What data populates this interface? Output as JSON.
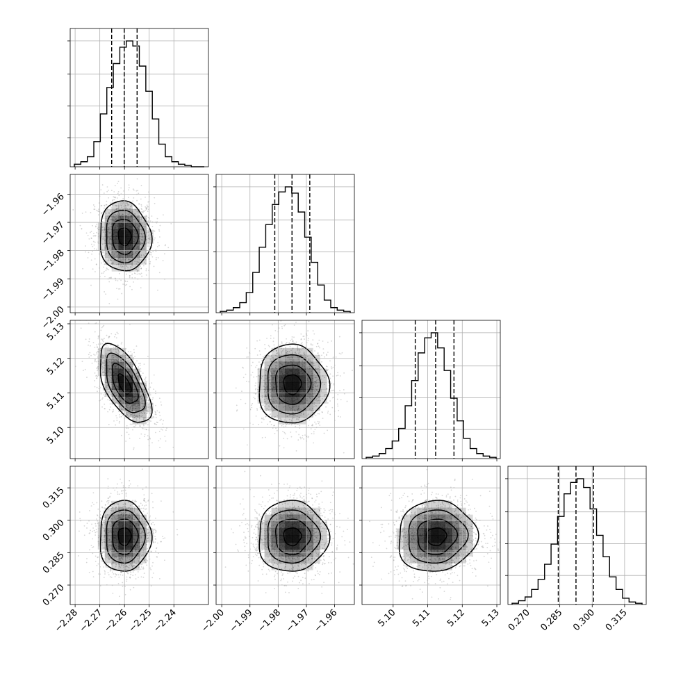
{
  "chart_data": {
    "type": "corner",
    "grid": true,
    "parameters": [
      {
        "index": 0,
        "range": [
          -2.282,
          -2.226
        ],
        "ticks": [
          -2.28,
          -2.27,
          -2.26,
          -2.25,
          -2.24
        ],
        "tick_labels": [
          "−2.28",
          "−2.27",
          "−2.26",
          "−2.25",
          "−2.24"
        ],
        "quantiles": [
          -2.2652,
          -2.2601,
          -2.2549
        ],
        "histogram": {
          "counts": [
            0.02,
            0.04,
            0.08,
            0.2,
            0.42,
            0.63,
            0.82,
            0.95,
            1.0,
            0.96,
            0.8,
            0.6,
            0.38,
            0.18,
            0.08,
            0.04,
            0.02,
            0.01,
            0,
            0
          ]
        }
      },
      {
        "index": 1,
        "range": [
          -2.002,
          -1.953
        ],
        "ticks": [
          -2.0,
          -1.99,
          -1.98,
          -1.97,
          -1.96
        ],
        "tick_labels": [
          "−2.00",
          "−1.99",
          "−1.98",
          "−1.97",
          "−1.96"
        ],
        "quantiles": [
          -1.9812,
          -1.9751,
          -1.9688
        ],
        "histogram": {
          "counts": [
            0.01,
            0.02,
            0.04,
            0.08,
            0.16,
            0.32,
            0.52,
            0.7,
            0.86,
            0.96,
            1.0,
            0.95,
            0.8,
            0.6,
            0.4,
            0.22,
            0.1,
            0.04,
            0.02,
            0.01
          ]
        }
      },
      {
        "index": 2,
        "range": [
          5.091,
          5.131
        ],
        "ticks": [
          5.1,
          5.11,
          5.12,
          5.13
        ],
        "tick_labels": [
          "5.10",
          "5.11",
          "5.12",
          "5.13"
        ],
        "quantiles": [
          5.1064,
          5.1123,
          5.1176
        ],
        "histogram": {
          "counts": [
            0.01,
            0.02,
            0.04,
            0.08,
            0.14,
            0.24,
            0.42,
            0.62,
            0.84,
            0.96,
            1.0,
            0.88,
            0.7,
            0.48,
            0.3,
            0.16,
            0.08,
            0.04,
            0.02,
            0.01
          ]
        }
      },
      {
        "index": 3,
        "range": [
          0.261,
          0.325
        ],
        "ticks": [
          0.27,
          0.285,
          0.3,
          0.315
        ],
        "tick_labels": [
          "0.270",
          "0.285",
          "0.300",
          "0.315"
        ],
        "quantiles": [
          0.2843,
          0.2925,
          0.3006
        ],
        "histogram": {
          "counts": [
            0.01,
            0.03,
            0.06,
            0.12,
            0.2,
            0.32,
            0.48,
            0.7,
            0.88,
            0.97,
            1.0,
            0.93,
            0.76,
            0.55,
            0.38,
            0.22,
            0.12,
            0.05,
            0.02,
            0.01
          ]
        }
      }
    ],
    "pairs": [
      {
        "x": 0,
        "y": 1,
        "mean": [
          -2.26,
          -1.975
        ],
        "sigma": [
          0.0052,
          0.0062
        ],
        "rho": -0.05,
        "levels": [
          0.5,
          1.0,
          1.5,
          2.0
        ]
      },
      {
        "x": 0,
        "y": 2,
        "mean": [
          -2.26,
          5.1125
        ],
        "sigma": [
          0.0052,
          0.0057
        ],
        "rho": -0.6,
        "levels": [
          0.5,
          1.0,
          1.5,
          2.0
        ]
      },
      {
        "x": 1,
        "y": 2,
        "mean": [
          -1.975,
          5.1125
        ],
        "sigma": [
          0.0062,
          0.0057
        ],
        "rho": 0.0,
        "levels": [
          0.5,
          1.0,
          1.5,
          2.0
        ]
      },
      {
        "x": 0,
        "y": 3,
        "mean": [
          -2.26,
          0.2925
        ],
        "sigma": [
          0.0052,
          0.0082
        ],
        "rho": 0.0,
        "levels": [
          0.5,
          1.0,
          1.5,
          2.0
        ]
      },
      {
        "x": 1,
        "y": 3,
        "mean": [
          -1.975,
          0.2925
        ],
        "sigma": [
          0.0062,
          0.0082
        ],
        "rho": 0.0,
        "levels": [
          0.5,
          1.0,
          1.5,
          2.0
        ]
      },
      {
        "x": 2,
        "y": 3,
        "mean": [
          5.1125,
          0.2925
        ],
        "sigma": [
          0.0057,
          0.0082
        ],
        "rho": 0.05,
        "levels": [
          0.5,
          1.0,
          1.5,
          2.0
        ]
      }
    ],
    "colors": {
      "line": "#000000",
      "grid": "#b0b0b0",
      "density": "#000000",
      "points": "#8a8a8a"
    }
  }
}
